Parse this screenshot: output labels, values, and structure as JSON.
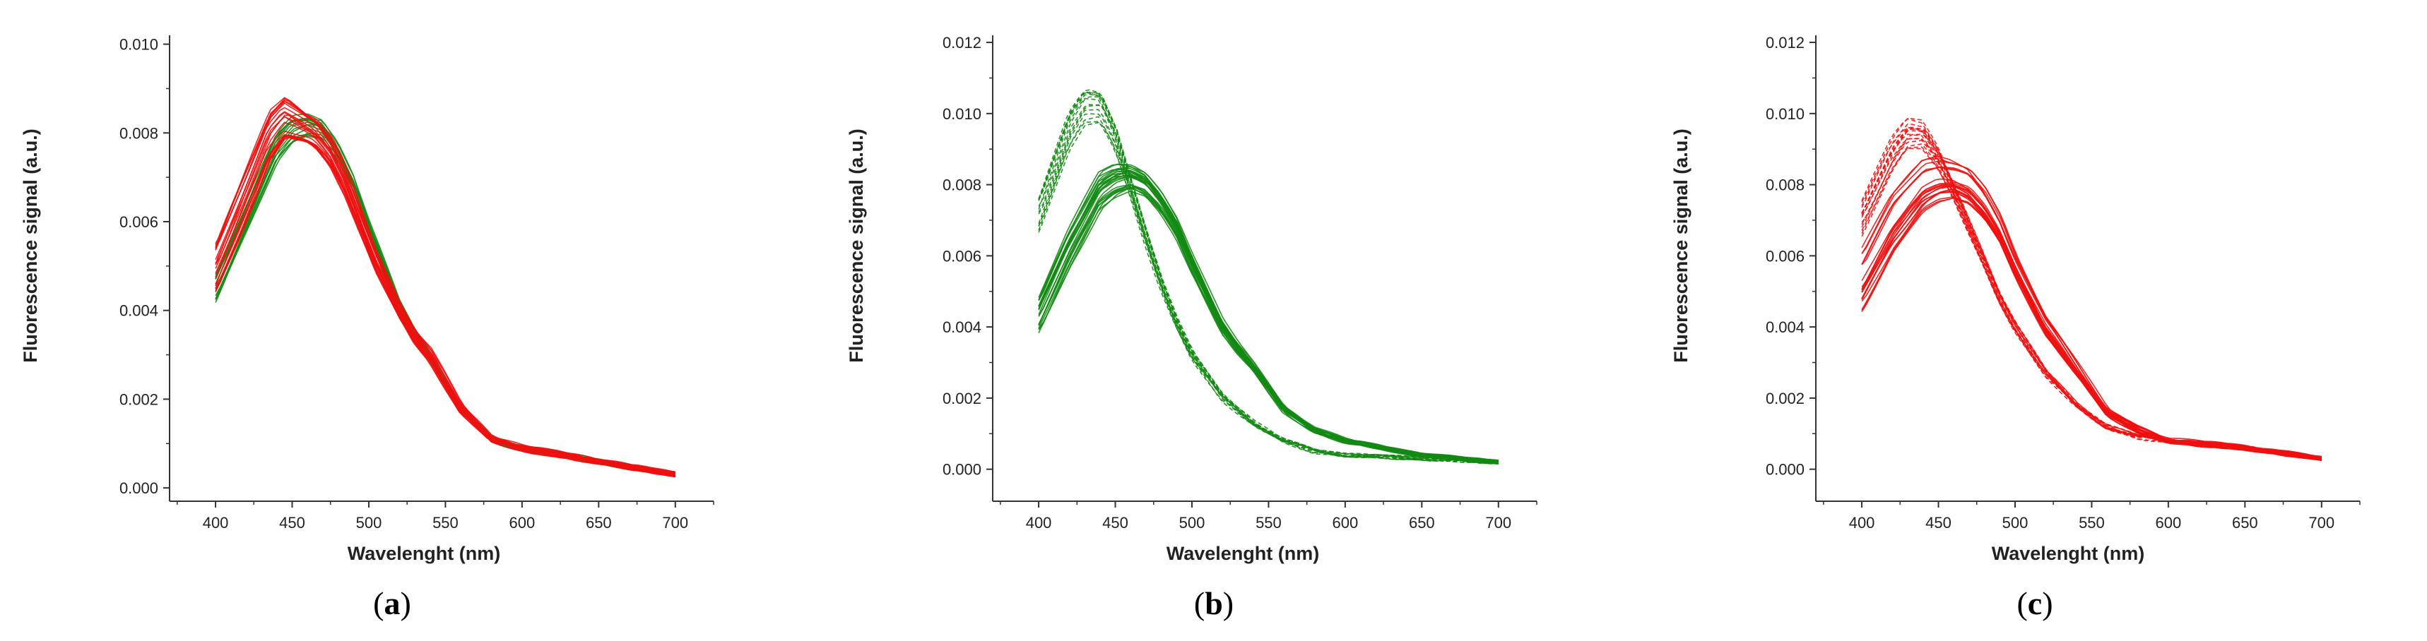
{
  "chart_data": [
    {
      "type": "line",
      "panel": "a",
      "panel_label": "a",
      "xlabel": "Wavelenght (nm)",
      "ylabel": "Fluorescence signal (a.u.)",
      "xlim": [
        370,
        725
      ],
      "ylim": [
        -0.0003,
        0.0102
      ],
      "x_ticks": [
        400,
        450,
        500,
        550,
        600,
        650,
        700
      ],
      "x_tick_labels": [
        "400",
        "450",
        "500",
        "550",
        "600",
        "650",
        "700"
      ],
      "y_ticks": [
        0.0,
        0.002,
        0.004,
        0.006,
        0.008,
        0.01
      ],
      "y_tick_labels": [
        "0.000",
        "0.002",
        "0.004",
        "0.006",
        "0.008",
        "0.010"
      ],
      "colors": {
        "green": "#138a13",
        "red": "#f01010"
      },
      "series": [
        {
          "name": "green-solid",
          "color": "green",
          "style": "solid",
          "count": 14,
          "spread": 0.06,
          "x": [
            400,
            420,
            440,
            450,
            460,
            470,
            480,
            490,
            500,
            520,
            530,
            540,
            550,
            560,
            580,
            600,
            650,
            700
          ],
          "y": [
            0.0045,
            0.0061,
            0.0077,
            0.0081,
            0.0082,
            0.0081,
            0.0076,
            0.0069,
            0.0059,
            0.0041,
            0.0035,
            0.003,
            0.0024,
            0.0018,
            0.0011,
            0.0009,
            0.0006,
            0.0003
          ]
        },
        {
          "name": "red-solid",
          "color": "red",
          "style": "solid",
          "count": 22,
          "spread": 0.08,
          "x": [
            400,
            420,
            435,
            445,
            455,
            465,
            475,
            485,
            495,
            505,
            520,
            530,
            540,
            550,
            560,
            580,
            600,
            650,
            700
          ],
          "y": [
            0.005,
            0.0067,
            0.008,
            0.0084,
            0.0082,
            0.008,
            0.0076,
            0.0069,
            0.006,
            0.0051,
            0.004,
            0.0034,
            0.003,
            0.0024,
            0.0018,
            0.0011,
            0.0009,
            0.0006,
            0.0003
          ]
        }
      ]
    },
    {
      "type": "line",
      "panel": "b",
      "panel_label": "b",
      "xlabel": "Wavelenght (nm)",
      "ylabel": "Fluorescence signal (a.u.)",
      "xlim": [
        370,
        725
      ],
      "ylim": [
        -0.0009,
        0.0122
      ],
      "x_ticks": [
        400,
        450,
        500,
        550,
        600,
        650,
        700
      ],
      "x_tick_labels": [
        "400",
        "450",
        "500",
        "550",
        "600",
        "650",
        "700"
      ],
      "y_ticks": [
        0.0,
        0.002,
        0.004,
        0.006,
        0.008,
        0.01,
        0.012
      ],
      "y_tick_labels": [
        "0.000",
        "0.002",
        "0.004",
        "0.006",
        "0.008",
        "0.010",
        "0.012"
      ],
      "colors": {
        "green": "#138a13",
        "red": "#f01010"
      },
      "series": [
        {
          "name": "green-solid",
          "color": "green",
          "style": "solid",
          "count": 24,
          "spread": 0.08,
          "x": [
            400,
            420,
            440,
            450,
            460,
            470,
            480,
            490,
            500,
            520,
            530,
            540,
            550,
            560,
            580,
            600,
            650,
            700
          ],
          "y": [
            0.0043,
            0.0062,
            0.0078,
            0.0081,
            0.0082,
            0.008,
            0.0075,
            0.0068,
            0.0058,
            0.004,
            0.0034,
            0.0029,
            0.0023,
            0.0017,
            0.0011,
            0.0008,
            0.0004,
            0.0002
          ]
        },
        {
          "name": "green-dashed",
          "color": "green",
          "style": "dashed",
          "count": 14,
          "spread": 0.05,
          "x": [
            400,
            410,
            420,
            430,
            440,
            450,
            460,
            470,
            480,
            490,
            500,
            520,
            540,
            560,
            580,
            600,
            650,
            700
          ],
          "y": [
            0.0071,
            0.0083,
            0.0095,
            0.0102,
            0.0102,
            0.0093,
            0.0079,
            0.0065,
            0.0052,
            0.0041,
            0.0032,
            0.002,
            0.0013,
            0.0008,
            0.0005,
            0.0004,
            0.0003,
            0.0002
          ]
        }
      ]
    },
    {
      "type": "line",
      "panel": "c",
      "panel_label": "c",
      "xlabel": "Wavelenght (nm)",
      "ylabel": "Fluorescence signal (a.u.)",
      "xlim": [
        370,
        725
      ],
      "ylim": [
        -0.0009,
        0.0122
      ],
      "x_ticks": [
        400,
        450,
        500,
        550,
        600,
        650,
        700
      ],
      "x_tick_labels": [
        "400",
        "450",
        "500",
        "550",
        "600",
        "650",
        "700"
      ],
      "y_ticks": [
        0.0,
        0.002,
        0.004,
        0.006,
        0.008,
        0.01,
        0.012
      ],
      "y_tick_labels": [
        "0.000",
        "0.002",
        "0.004",
        "0.006",
        "0.008",
        "0.010",
        "0.012"
      ],
      "colors": {
        "green": "#138a13",
        "red": "#f01010"
      },
      "series": [
        {
          "name": "red-solid",
          "color": "red",
          "style": "solid",
          "count": 22,
          "spread": 0.12,
          "x": [
            400,
            420,
            440,
            450,
            460,
            470,
            480,
            490,
            500,
            520,
            530,
            540,
            550,
            560,
            580,
            600,
            650,
            700
          ],
          "y": [
            0.0052,
            0.0068,
            0.0079,
            0.0081,
            0.0081,
            0.0079,
            0.0074,
            0.0067,
            0.0057,
            0.004,
            0.0034,
            0.0028,
            0.0022,
            0.0016,
            0.0011,
            0.0008,
            0.0006,
            0.0003
          ]
        },
        {
          "name": "red-dashed",
          "color": "red",
          "style": "dashed",
          "count": 16,
          "spread": 0.06,
          "x": [
            400,
            410,
            420,
            430,
            440,
            450,
            460,
            470,
            480,
            490,
            500,
            520,
            540,
            560,
            580,
            600,
            650,
            700
          ],
          "y": [
            0.0069,
            0.0078,
            0.0087,
            0.0093,
            0.0093,
            0.0087,
            0.0078,
            0.0068,
            0.0058,
            0.0048,
            0.004,
            0.0027,
            0.0018,
            0.0012,
            0.0009,
            0.0008,
            0.0006,
            0.0003
          ]
        }
      ]
    }
  ]
}
